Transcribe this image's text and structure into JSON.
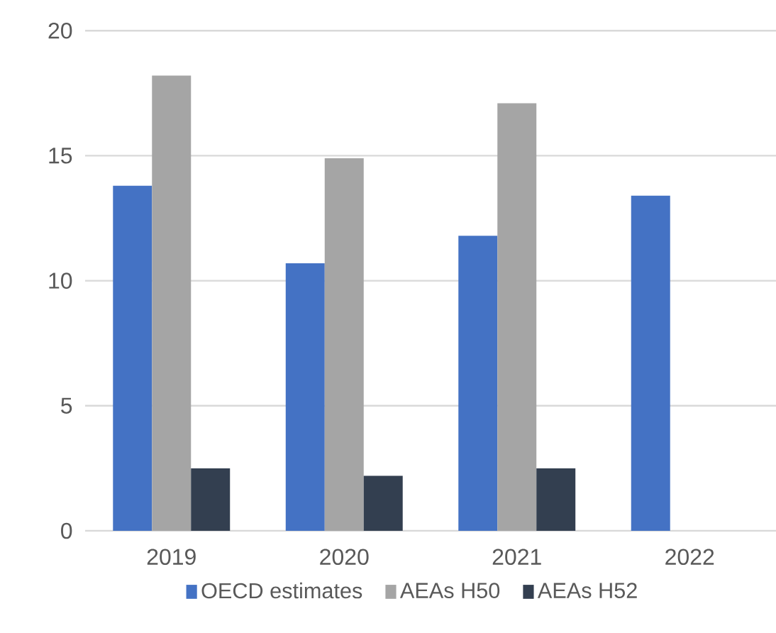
{
  "chart_data": {
    "type": "bar",
    "categories": [
      "2019",
      "2020",
      "2021",
      "2022"
    ],
    "series": [
      {
        "name": "OECD estimates",
        "color": "#4472c4",
        "values": [
          13.8,
          10.7,
          11.8,
          13.4
        ]
      },
      {
        "name": "AEAs H50",
        "color": "#a5a5a5",
        "values": [
          18.2,
          14.9,
          17.1,
          null
        ]
      },
      {
        "name": "AEAs H52",
        "color": "#333f50",
        "values": [
          2.5,
          2.2,
          2.5,
          null
        ]
      }
    ],
    "ylim": [
      0,
      20
    ],
    "yticks": [
      0,
      5,
      10,
      15,
      20
    ],
    "grid": "y",
    "legend": "bottom"
  }
}
